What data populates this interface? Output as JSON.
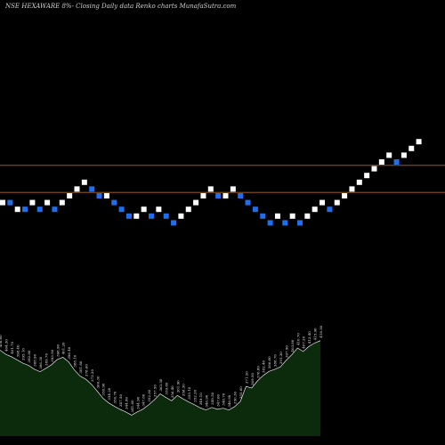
{
  "title": "NSE HEXAWARE 8%-  Closing Daily data  Renko  charts MunafaSutra.com",
  "colors": {
    "background": "#000000",
    "up_brick": "#ffffff",
    "down_brick": "#1e6ef0",
    "reference_line": "#b5651d",
    "area_fill": "#0c2a0c",
    "area_stroke": "#e6e6e6",
    "label": "#e8e8e8"
  },
  "chart_data": [
    {
      "type": "renko",
      "title": "NSE HEXAWARE 8%-  Closing Daily data  Renko  charts MunafaSutra.com",
      "brick_size_percent": 8,
      "grid": false,
      "reference_levels": [
        14.5,
        10.5
      ],
      "levels": [
        9,
        9,
        8,
        8,
        9,
        8,
        9,
        8,
        9,
        10,
        11,
        12,
        11,
        10,
        10,
        9,
        8,
        7,
        7,
        8,
        7,
        8,
        7,
        6,
        7,
        8,
        9,
        10,
        11,
        10,
        10,
        11,
        10,
        9,
        8,
        7,
        6,
        7,
        6,
        7,
        6,
        7,
        8,
        9,
        8,
        9,
        10,
        11,
        12,
        13,
        14,
        15,
        16,
        15,
        16,
        17,
        18
      ],
      "directions": [
        "up",
        "down",
        "up",
        "down",
        "up",
        "down",
        "up",
        "down",
        "up",
        "up",
        "up",
        "up",
        "down",
        "down",
        "up",
        "down",
        "down",
        "down",
        "up",
        "up",
        "down",
        "up",
        "down",
        "down",
        "up",
        "up",
        "up",
        "up",
        "up",
        "down",
        "up",
        "up",
        "down",
        "down",
        "down",
        "down",
        "down",
        "up",
        "down",
        "up",
        "down",
        "up",
        "up",
        "up",
        "down",
        "up",
        "up",
        "up",
        "up",
        "up",
        "up",
        "up",
        "up",
        "down",
        "up",
        "up",
        "up"
      ]
    },
    {
      "type": "area",
      "series": [
        {
          "values": [
            408.6,
            404.3,
            401.7,
            398.4,
            395.1,
            392.8,
            388.9,
            386.3,
            389.7,
            393.5,
            398.9,
            401.2,
            396.4,
            388.1,
            381.8,
            378.6,
            373.2,
            366.3,
            358.9,
            354.2,
            350.7,
            347.5,
            344.8,
            341.6,
            344.9,
            347.8,
            352.3,
            357.5,
            363.5,
            359.8,
            356.4,
            361.9,
            358.3,
            355.1,
            352.2,
            349.1,
            346.9,
            349.5,
            347.6,
            348.7,
            346.9,
            350.3,
            355.6,
            371.2,
            369.5,
            376.8,
            382.4,
            386.6,
            388.7,
            391.3,
            397.9,
            403.8,
            410.7,
            407.2,
            412.4,
            415.9,
            418.3
          ],
          "labels": [
            "408.60",
            "404.30",
            "401.70",
            "398.40",
            "395.10",
            "392.80",
            "388.90",
            "386.30",
            "389.70",
            "393.50",
            "398.90",
            "401.20",
            "396.40",
            "388.10",
            "381.80",
            "378.60",
            "373.20",
            "366.30",
            "358.90",
            "354.20",
            "350.70",
            "347.50",
            "344.80",
            "341.60",
            "344.90",
            "347.80",
            "352.30",
            "357.50",
            "363.50",
            "359.80",
            "356.40",
            "361.90",
            "358.30",
            "355.10",
            "352.20",
            "349.10",
            "346.90",
            "349.50",
            "347.60",
            "348.70",
            "346.90",
            "350.30",
            "355.60",
            "371.20",
            "369.50",
            "376.80",
            "382.40",
            "386.60",
            "388.70",
            "391.30",
            "397.90",
            "403.80",
            "410.70",
            "407.20",
            "412.40",
            "415.90",
            "418.30"
          ]
        }
      ]
    }
  ]
}
